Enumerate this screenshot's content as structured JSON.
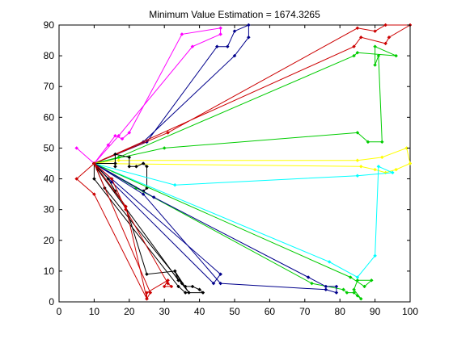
{
  "chart_data": {
    "type": "line",
    "title": "Minimum Value Estimation = 1674.3265",
    "xlabel": "",
    "ylabel": "",
    "xlim": [
      0,
      100
    ],
    "ylim": [
      0,
      90
    ],
    "xticks": [
      0,
      10,
      20,
      30,
      40,
      50,
      60,
      70,
      80,
      90,
      100
    ],
    "yticks": [
      0,
      10,
      20,
      30,
      40,
      50,
      60,
      70,
      80,
      90
    ],
    "grid": false,
    "legend": "none",
    "depot": [
      10,
      45
    ],
    "series": [
      {
        "color": "#ff00ff",
        "points": [
          [
            10,
            45
          ],
          [
            5,
            50
          ],
          [
            10,
            45
          ],
          [
            14,
            51
          ],
          [
            16,
            54
          ],
          [
            18,
            53
          ],
          [
            20,
            55
          ],
          [
            35,
            87
          ],
          [
            46,
            89
          ],
          [
            46,
            87
          ],
          [
            38,
            83
          ],
          [
            17,
            54
          ],
          [
            10,
            45
          ]
        ]
      },
      {
        "color": "#00008b",
        "points": [
          [
            10,
            45
          ],
          [
            25,
            52
          ],
          [
            45,
            83
          ],
          [
            48,
            83
          ],
          [
            50,
            88
          ],
          [
            54,
            90
          ],
          [
            54,
            86
          ],
          [
            50,
            80
          ],
          [
            24,
            52
          ],
          [
            10,
            45
          ]
        ]
      },
      {
        "color": "#cc0000",
        "points": [
          [
            10,
            45
          ],
          [
            31,
            55
          ],
          [
            85,
            89
          ],
          [
            90,
            88
          ],
          [
            93,
            90
          ],
          [
            100,
            90
          ],
          [
            94,
            86
          ],
          [
            93,
            84
          ],
          [
            86,
            86
          ],
          [
            84,
            83
          ],
          [
            16,
            48
          ],
          [
            10,
            45
          ]
        ]
      },
      {
        "color": "#00cc00",
        "points": [
          [
            10,
            45
          ],
          [
            30,
            50
          ],
          [
            85,
            55
          ],
          [
            88,
            52
          ],
          [
            92,
            52
          ],
          [
            91,
            80
          ],
          [
            90,
            77
          ],
          [
            90,
            83
          ],
          [
            96,
            80
          ],
          [
            85,
            81
          ],
          [
            84,
            80
          ],
          [
            17,
            47
          ],
          [
            10,
            45
          ]
        ]
      },
      {
        "color": "#ffff00",
        "points": [
          [
            10,
            45
          ],
          [
            17,
            46
          ],
          [
            85,
            46
          ],
          [
            92,
            47
          ],
          [
            99,
            50
          ],
          [
            100,
            45
          ],
          [
            96,
            43
          ],
          [
            93,
            42
          ],
          [
            90,
            43
          ],
          [
            86,
            44
          ],
          [
            10,
            45
          ]
        ]
      },
      {
        "color": "#000000",
        "points": [
          [
            10,
            45
          ],
          [
            16,
            45
          ],
          [
            16,
            44
          ],
          [
            16,
            48
          ],
          [
            20,
            47
          ],
          [
            20,
            44
          ],
          [
            22,
            44
          ],
          [
            24,
            45
          ],
          [
            25,
            44
          ],
          [
            25,
            37
          ],
          [
            24,
            36
          ],
          [
            10,
            45
          ]
        ]
      },
      {
        "color": "#00ffff",
        "points": [
          [
            10,
            45
          ],
          [
            33,
            38
          ],
          [
            85,
            41
          ],
          [
            95,
            42
          ],
          [
            91,
            44
          ],
          [
            90,
            15
          ],
          [
            85,
            8
          ],
          [
            77,
            13
          ],
          [
            10,
            45
          ]
        ]
      },
      {
        "color": "#00cc00",
        "points": [
          [
            10,
            45
          ],
          [
            22,
            37
          ],
          [
            72,
            6
          ],
          [
            81,
            4
          ],
          [
            82,
            3
          ],
          [
            84,
            3
          ],
          [
            85,
            2
          ],
          [
            86,
            1
          ],
          [
            84,
            4
          ],
          [
            85,
            7
          ],
          [
            89,
            7
          ],
          [
            87,
            5
          ],
          [
            83,
            8
          ],
          [
            10,
            45
          ]
        ]
      },
      {
        "color": "#00008b",
        "points": [
          [
            10,
            45
          ],
          [
            24,
            35
          ],
          [
            46,
            6
          ],
          [
            76,
            4
          ],
          [
            79,
            3
          ],
          [
            79,
            5
          ],
          [
            76,
            5
          ],
          [
            71,
            8
          ],
          [
            27,
            34
          ],
          [
            10,
            45
          ]
        ]
      },
      {
        "color": "#00008b",
        "points": [
          [
            10,
            45
          ],
          [
            15,
            40
          ],
          [
            46,
            9
          ],
          [
            44,
            6
          ],
          [
            15,
            39
          ],
          [
            10,
            45
          ]
        ]
      },
      {
        "color": "#000000",
        "points": [
          [
            10,
            45
          ],
          [
            11,
            43
          ],
          [
            34,
            7
          ],
          [
            33,
            10
          ],
          [
            35,
            6
          ],
          [
            36,
            5
          ],
          [
            38,
            5
          ],
          [
            40,
            4
          ],
          [
            41,
            3
          ],
          [
            36,
            3
          ],
          [
            34,
            5
          ],
          [
            10,
            40
          ],
          [
            10,
            45
          ]
        ]
      },
      {
        "color": "#000000",
        "points": [
          [
            10,
            45
          ],
          [
            14,
            40
          ],
          [
            16,
            36
          ],
          [
            19,
            31
          ],
          [
            25,
            9
          ],
          [
            33,
            10
          ],
          [
            37,
            3
          ],
          [
            13,
            37
          ],
          [
            10,
            45
          ]
        ]
      },
      {
        "color": "#cc0000",
        "points": [
          [
            10,
            45
          ],
          [
            15,
            40
          ],
          [
            19,
            30
          ],
          [
            31,
            6
          ],
          [
            32,
            5
          ],
          [
            30,
            5
          ],
          [
            31,
            7
          ],
          [
            25,
            3
          ],
          [
            25,
            1
          ],
          [
            19,
            31
          ],
          [
            10,
            45
          ]
        ]
      },
      {
        "color": "#cc0000",
        "points": [
          [
            10,
            45
          ],
          [
            5,
            40
          ],
          [
            10,
            35
          ],
          [
            25,
            1
          ],
          [
            26,
            3
          ],
          [
            10,
            45
          ]
        ]
      }
    ]
  }
}
